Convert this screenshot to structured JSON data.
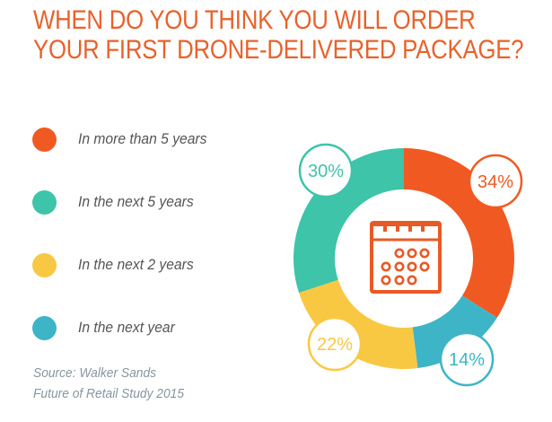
{
  "title": {
    "line1": "WHEN DO YOU THINK YOU WILL ORDER",
    "line2": "YOUR FIRST DRONE-DELIVERED PACKAGE?"
  },
  "source": {
    "line1": "Source: Walker Sands",
    "line2": "Future of Retail Study 2015"
  },
  "center_icon": "calendar-icon",
  "chart_data": {
    "type": "pie",
    "variant": "donut",
    "legend_placement": "left",
    "slices": [
      {
        "label": "In more than 5 years",
        "value": 34,
        "display": "34%",
        "color": "#f05a22"
      },
      {
        "label": "In the next year",
        "value": 14,
        "display": "14%",
        "color": "#3db5c7"
      },
      {
        "label": "In the next 2 years",
        "value": 22,
        "display": "22%",
        "color": "#f9c843"
      },
      {
        "label": "In the next 5 years",
        "value": 30,
        "display": "30%",
        "color": "#3ec4a8"
      }
    ],
    "legend_order": [
      0,
      3,
      2,
      1
    ]
  }
}
